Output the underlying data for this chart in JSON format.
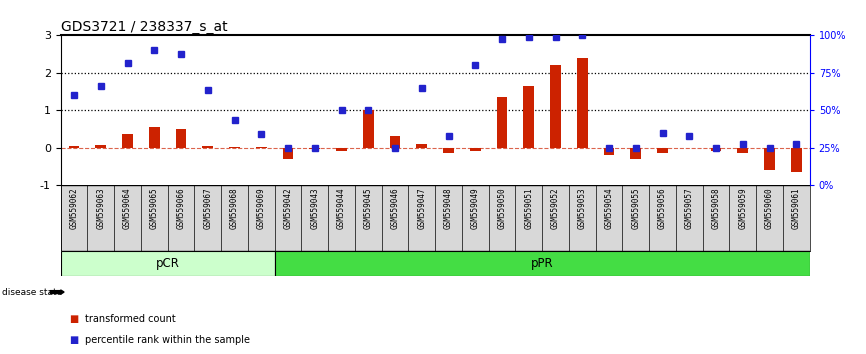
{
  "title": "GDS3721 / 238337_s_at",
  "samples": [
    "GSM559062",
    "GSM559063",
    "GSM559064",
    "GSM559065",
    "GSM559066",
    "GSM559067",
    "GSM559068",
    "GSM559069",
    "GSM559042",
    "GSM559043",
    "GSM559044",
    "GSM559045",
    "GSM559046",
    "GSM559047",
    "GSM559048",
    "GSM559049",
    "GSM559050",
    "GSM559051",
    "GSM559052",
    "GSM559053",
    "GSM559054",
    "GSM559055",
    "GSM559056",
    "GSM559057",
    "GSM559058",
    "GSM559059",
    "GSM559060",
    "GSM559061"
  ],
  "transformed_count": [
    0.05,
    0.08,
    0.35,
    0.55,
    0.5,
    0.05,
    0.02,
    0.02,
    -0.3,
    -0.05,
    -0.1,
    1.0,
    0.3,
    0.1,
    -0.15,
    -0.1,
    1.35,
    1.65,
    2.2,
    2.4,
    -0.2,
    -0.3,
    -0.15,
    0.0,
    -0.1,
    -0.15,
    -0.6,
    -0.65
  ],
  "percentile_rank": [
    1.4,
    1.65,
    2.25,
    2.6,
    2.5,
    1.55,
    0.75,
    0.35,
    0.0,
    0.0,
    1.0,
    1.0,
    0.0,
    1.6,
    0.3,
    2.2,
    2.9,
    2.95,
    2.95,
    3.0,
    0.0,
    0.0,
    0.4,
    0.3,
    0.0,
    0.1,
    0.0,
    0.1
  ],
  "pcr_count": 8,
  "ppr_count": 20,
  "bar_color": "#cc2200",
  "dot_color": "#2222cc",
  "pcr_color": "#ccffcc",
  "ppr_color": "#44dd44",
  "ylim": [
    -1,
    3
  ],
  "yticks_left": [
    -1,
    0,
    1,
    2,
    3
  ],
  "hline_positions": [
    1.0,
    2.0
  ],
  "background_color": "#ffffff",
  "title_fontsize": 10,
  "label_bg": "#d8d8d8"
}
